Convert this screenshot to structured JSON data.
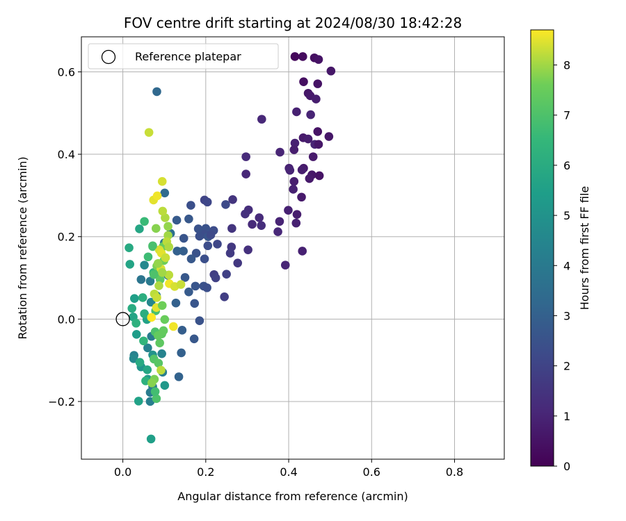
{
  "chart_data": {
    "type": "scatter",
    "title": "FOV centre drift starting at 2024/08/30 18:42:28",
    "xlabel": "Angular distance from reference (arcmin)",
    "ylabel": "Rotation from reference (arcmin)",
    "xlim": [
      -0.1,
      0.92
    ],
    "ylim": [
      -0.34,
      0.685
    ],
    "xticks": [
      0.0,
      0.2,
      0.4,
      0.6,
      0.8
    ],
    "xtick_labels": [
      "0.0",
      "0.2",
      "0.4",
      "0.6",
      "0.8"
    ],
    "yticks": [
      -0.2,
      0.0,
      0.2,
      0.4,
      0.6
    ],
    "ytick_labels": [
      "−0.2",
      "0.0",
      "0.2",
      "0.4",
      "0.6"
    ],
    "grid": true,
    "legend": {
      "placement": "upper-left",
      "label": "Reference platepar"
    },
    "reference_point": {
      "x": 0.0,
      "y": 0.0
    },
    "colorbar": {
      "label": "Hours from first FF file",
      "range": [
        0,
        8.7
      ],
      "ticks": [
        0,
        1,
        2,
        3,
        4,
        5,
        6,
        7,
        8
      ],
      "tick_labels": [
        "0",
        "1",
        "2",
        "3",
        "4",
        "5",
        "6",
        "7",
        "8"
      ],
      "colormap": "viridis"
    },
    "points": [
      [
        0.415,
        0.637,
        0.2
      ],
      [
        0.434,
        0.637,
        0.3
      ],
      [
        0.462,
        0.634,
        0.4
      ],
      [
        0.472,
        0.63,
        0.5
      ],
      [
        0.502,
        0.602,
        0.6
      ],
      [
        0.436,
        0.576,
        0.4
      ],
      [
        0.47,
        0.571,
        0.5
      ],
      [
        0.447,
        0.548,
        0.6
      ],
      [
        0.452,
        0.542,
        0.7
      ],
      [
        0.466,
        0.534,
        0.8
      ],
      [
        0.419,
        0.503,
        0.9
      ],
      [
        0.453,
        0.496,
        1.0
      ],
      [
        0.335,
        0.485,
        1.1
      ],
      [
        0.47,
        0.455,
        0.5
      ],
      [
        0.497,
        0.443,
        0.6
      ],
      [
        0.435,
        0.44,
        0.7
      ],
      [
        0.447,
        0.437,
        0.8
      ],
      [
        0.415,
        0.427,
        0.9
      ],
      [
        0.463,
        0.424,
        1.0
      ],
      [
        0.472,
        0.424,
        0.6
      ],
      [
        0.413,
        0.411,
        0.8
      ],
      [
        0.379,
        0.405,
        1.0
      ],
      [
        0.459,
        0.394,
        0.7
      ],
      [
        0.297,
        0.394,
        1.2
      ],
      [
        0.401,
        0.366,
        0.9
      ],
      [
        0.403,
        0.361,
        1.0
      ],
      [
        0.436,
        0.366,
        0.7
      ],
      [
        0.432,
        0.362,
        0.8
      ],
      [
        0.297,
        0.352,
        1.1
      ],
      [
        0.456,
        0.35,
        0.6
      ],
      [
        0.45,
        0.341,
        0.7
      ],
      [
        0.474,
        0.348,
        0.5
      ],
      [
        0.413,
        0.334,
        0.8
      ],
      [
        0.411,
        0.315,
        0.9
      ],
      [
        0.431,
        0.296,
        0.7
      ],
      [
        0.265,
        0.29,
        1.5
      ],
      [
        0.399,
        0.264,
        0.9
      ],
      [
        0.42,
        0.254,
        0.8
      ],
      [
        0.303,
        0.265,
        1.3
      ],
      [
        0.295,
        0.255,
        1.4
      ],
      [
        0.329,
        0.246,
        1.2
      ],
      [
        0.378,
        0.237,
        1.0
      ],
      [
        0.418,
        0.233,
        0.9
      ],
      [
        0.312,
        0.23,
        1.2
      ],
      [
        0.334,
        0.227,
        1.3
      ],
      [
        0.374,
        0.212,
        1.1
      ],
      [
        0.263,
        0.22,
        1.5
      ],
      [
        0.302,
        0.168,
        1.4
      ],
      [
        0.262,
        0.175,
        1.6
      ],
      [
        0.259,
        0.16,
        1.7
      ],
      [
        0.433,
        0.165,
        0.9
      ],
      [
        0.277,
        0.136,
        1.6
      ],
      [
        0.392,
        0.131,
        1.0
      ],
      [
        0.22,
        0.108,
        1.8
      ],
      [
        0.25,
        0.109,
        1.9
      ],
      [
        0.224,
        0.1,
        1.9
      ],
      [
        0.245,
        0.054,
        1.8
      ],
      [
        0.197,
        0.289,
        2.0
      ],
      [
        0.204,
        0.284,
        2.1
      ],
      [
        0.248,
        0.278,
        2.2
      ],
      [
        0.164,
        0.276,
        2.4
      ],
      [
        0.182,
        0.219,
        2.5
      ],
      [
        0.2,
        0.22,
        2.5
      ],
      [
        0.197,
        0.206,
        2.3
      ],
      [
        0.206,
        0.2,
        2.6
      ],
      [
        0.185,
        0.201,
        2.4
      ],
      [
        0.219,
        0.215,
        2.3
      ],
      [
        0.212,
        0.204,
        2.2
      ],
      [
        0.228,
        0.182,
        2.1
      ],
      [
        0.205,
        0.178,
        2.3
      ],
      [
        0.147,
        0.196,
        2.6
      ],
      [
        0.177,
        0.16,
        2.5
      ],
      [
        0.165,
        0.146,
        2.7
      ],
      [
        0.146,
        0.165,
        2.9
      ],
      [
        0.197,
        0.146,
        2.4
      ],
      [
        0.13,
        0.24,
        2.8
      ],
      [
        0.159,
        0.243,
        2.7
      ],
      [
        0.131,
        0.165,
        3.0
      ],
      [
        0.175,
        0.08,
        2.6
      ],
      [
        0.195,
        0.08,
        2.5
      ],
      [
        0.203,
        0.076,
        2.4
      ],
      [
        0.15,
        0.101,
        2.7
      ],
      [
        0.159,
        0.066,
        2.8
      ],
      [
        0.173,
        0.038,
        2.6
      ],
      [
        0.185,
        -0.004,
        2.5
      ],
      [
        0.128,
        0.039,
        3.0
      ],
      [
        0.143,
        -0.027,
        2.9
      ],
      [
        0.172,
        -0.048,
        2.7
      ],
      [
        0.141,
        -0.082,
        3.0
      ],
      [
        0.135,
        -0.14,
        3.1
      ],
      [
        0.082,
        0.552,
        3.3
      ],
      [
        0.101,
        0.306,
        3.4
      ],
      [
        0.115,
        0.208,
        3.6
      ],
      [
        0.1,
        0.185,
        3.9
      ],
      [
        0.109,
        0.106,
        3.7
      ],
      [
        0.044,
        0.096,
        3.8
      ],
      [
        0.066,
        0.092,
        4.0
      ],
      [
        0.081,
        0.057,
        4.2
      ],
      [
        0.068,
        0.041,
        4.5
      ],
      [
        0.052,
        0.131,
        4.6
      ],
      [
        0.069,
        -0.042,
        4.1
      ],
      [
        0.094,
        -0.084,
        4.4
      ],
      [
        0.096,
        -0.129,
        4.2
      ],
      [
        0.027,
        -0.088,
        4.3
      ],
      [
        0.026,
        -0.096,
        4.6
      ],
      [
        0.06,
        -0.07,
        4.3
      ],
      [
        0.072,
        -0.164,
        4.0
      ],
      [
        0.066,
        -0.178,
        4.1
      ],
      [
        0.066,
        -0.2,
        4.2
      ],
      [
        0.072,
        -0.087,
        5.0
      ],
      [
        0.101,
        -0.161,
        5.2
      ],
      [
        0.06,
        -0.146,
        5.3
      ],
      [
        0.044,
        -0.116,
        5.1
      ],
      [
        0.033,
        -0.037,
        5.4
      ],
      [
        0.058,
        -0.001,
        5.6
      ],
      [
        0.068,
        -0.291,
        5.5
      ],
      [
        0.038,
        -0.199,
        5.6
      ],
      [
        0.04,
        0.219,
        5.8
      ],
      [
        0.015,
        0.173,
        5.9
      ],
      [
        0.017,
        0.133,
        5.7
      ],
      [
        0.028,
        0.05,
        5.5
      ],
      [
        0.025,
        0.005,
        5.7
      ],
      [
        0.022,
        0.026,
        6.0
      ],
      [
        0.048,
        0.052,
        6.1
      ],
      [
        0.032,
        -0.01,
        6.2
      ],
      [
        0.052,
        0.013,
        6.1
      ],
      [
        0.041,
        -0.105,
        5.9
      ],
      [
        0.055,
        -0.15,
        6.2
      ],
      [
        0.059,
        -0.123,
        5.8
      ],
      [
        0.05,
        -0.053,
        6.4
      ],
      [
        0.052,
        0.237,
        6.6
      ],
      [
        0.074,
        0.113,
        6.5
      ],
      [
        0.086,
        0.11,
        6.8
      ],
      [
        0.061,
        0.151,
        6.7
      ],
      [
        0.072,
        0.176,
        6.9
      ],
      [
        0.079,
        0.02,
        6.9
      ],
      [
        0.078,
        -0.031,
        7.0
      ],
      [
        0.075,
        -0.097,
        7.1
      ],
      [
        0.086,
        -0.107,
        7.2
      ],
      [
        0.081,
        -0.193,
        7.0
      ],
      [
        0.078,
        -0.176,
        6.8
      ],
      [
        0.094,
        -0.036,
        7.3
      ],
      [
        0.085,
        -0.04,
        7.4
      ],
      [
        0.09,
        0.096,
        7.3
      ],
      [
        0.097,
        0.176,
        7.5
      ],
      [
        0.099,
        0.142,
        7.6
      ],
      [
        0.082,
        0.129,
        7.7
      ],
      [
        0.08,
        0.22,
        7.8
      ],
      [
        0.109,
        0.225,
        7.9
      ],
      [
        0.109,
        0.203,
        8.0
      ],
      [
        0.102,
        0.246,
        8.1
      ],
      [
        0.096,
        0.262,
        8.2
      ],
      [
        0.063,
        0.453,
        8.3
      ],
      [
        0.095,
        0.334,
        8.4
      ],
      [
        0.074,
        0.289,
        8.5
      ],
      [
        0.083,
        0.299,
        8.6
      ],
      [
        0.088,
        0.168,
        8.4
      ],
      [
        0.093,
        0.16,
        8.5
      ],
      [
        0.103,
        0.149,
        8.3
      ],
      [
        0.106,
        0.188,
        8.2
      ],
      [
        0.111,
        0.175,
        8.1
      ],
      [
        0.092,
        0.122,
        8.4
      ],
      [
        0.111,
        0.107,
        8.2
      ],
      [
        0.095,
        0.113,
        8.0
      ],
      [
        0.085,
        0.135,
        7.9
      ],
      [
        0.087,
        0.081,
        8.1
      ],
      [
        0.076,
        0.061,
        8.2
      ],
      [
        0.082,
        0.052,
        8.3
      ],
      [
        0.081,
        0.028,
        8.5
      ],
      [
        0.095,
        0.033,
        7.6
      ],
      [
        0.112,
        0.086,
        8.6
      ],
      [
        0.125,
        0.079,
        8.4
      ],
      [
        0.14,
        0.084,
        8.3
      ],
      [
        0.101,
        -0.001,
        7.5
      ],
      [
        0.098,
        -0.028,
        7.4
      ],
      [
        0.089,
        -0.058,
        7.3
      ],
      [
        0.122,
        -0.018,
        8.6
      ],
      [
        0.092,
        -0.124,
        8.2
      ],
      [
        0.076,
        -0.146,
        7.7
      ],
      [
        0.07,
        -0.155,
        7.8
      ],
      [
        0.069,
        0.004,
        8.7
      ],
      [
        0.075,
        0.108,
        7.0
      ],
      [
        0.072,
        0.178,
        6.9
      ]
    ]
  }
}
